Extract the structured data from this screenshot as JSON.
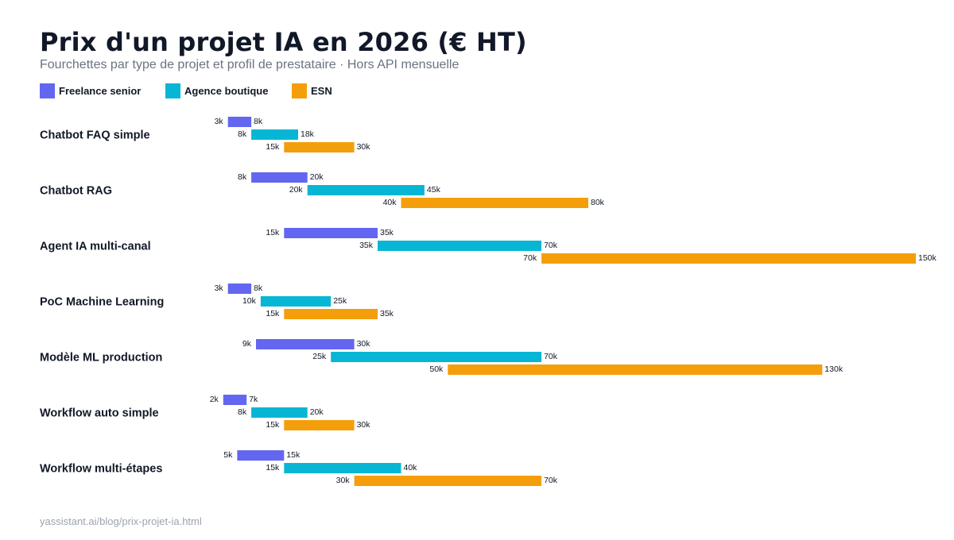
{
  "header": {
    "title": "Prix d'un projet IA en 2026 (€ HT)",
    "subtitle": "Fourchettes par type de projet et profil de prestataire · Hors API mensuelle"
  },
  "footer": {
    "source": "yassistant.ai/blog/prix-projet-ia.html"
  },
  "colors": {
    "freelance": "#6366f1",
    "agence": "#06b6d4",
    "esn": "#f59e0b",
    "label_text": "#111827",
    "value_text": "#111827"
  },
  "chart_data": {
    "type": "bar",
    "orientation": "horizontal-range",
    "title": "Prix d'un projet IA en 2026 (€ HT)",
    "subtitle": "Fourchettes par type de projet et profil de prestataire · Hors API mensuelle",
    "unit": "k€",
    "xlim": [
      0,
      150
    ],
    "grid": false,
    "legend_position": "top-left",
    "categories": [
      "Chatbot FAQ simple",
      "Chatbot RAG",
      "Agent IA multi-canal",
      "PoC Machine Learning",
      "Modèle ML production",
      "Workflow auto simple",
      "Workflow multi-étapes"
    ],
    "series": [
      {
        "name": "Freelance senior",
        "color": "#6366f1",
        "ranges": [
          [
            3,
            8
          ],
          [
            8,
            20
          ],
          [
            15,
            35
          ],
          [
            3,
            8
          ],
          [
            9,
            30
          ],
          [
            2,
            7
          ],
          [
            5,
            15
          ]
        ]
      },
      {
        "name": "Agence boutique",
        "color": "#06b6d4",
        "ranges": [
          [
            8,
            18
          ],
          [
            20,
            45
          ],
          [
            35,
            70
          ],
          [
            10,
            25
          ],
          [
            25,
            70
          ],
          [
            8,
            20
          ],
          [
            15,
            40
          ]
        ]
      },
      {
        "name": "ESN",
        "color": "#f59e0b",
        "ranges": [
          [
            15,
            30
          ],
          [
            40,
            80
          ],
          [
            70,
            150
          ],
          [
            15,
            35
          ],
          [
            50,
            130
          ],
          [
            15,
            30
          ],
          [
            30,
            70
          ]
        ]
      }
    ]
  }
}
